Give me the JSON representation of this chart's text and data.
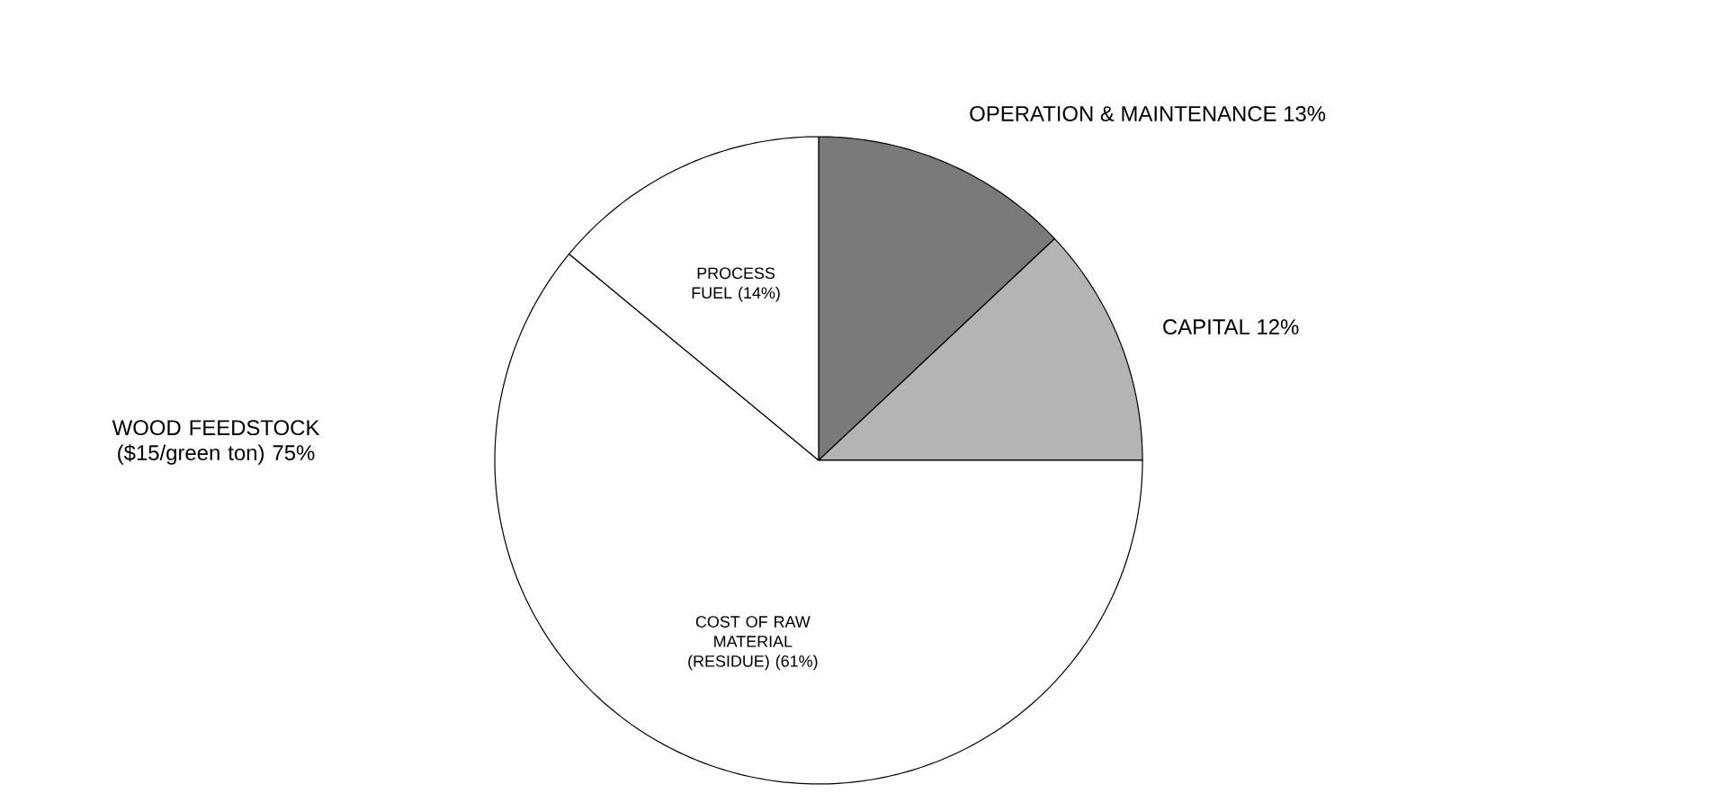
{
  "chart_data": {
    "type": "pie",
    "categories": [
      "OPERATION & MAINTENANCE 13%",
      "CAPITAL 12%",
      "COST OF RAW MATERIAL (RESIDUE) (61%)",
      "PROCESS FUEL (14%)"
    ],
    "values": [
      13,
      12,
      61,
      14
    ],
    "colors": [
      "#7a7a7a",
      "#b4b4b4",
      "#ffffff",
      "#ffffff"
    ],
    "annotations": [
      "WOOD FEEDSTOCK ($15/green ton) 75%"
    ]
  }
}
